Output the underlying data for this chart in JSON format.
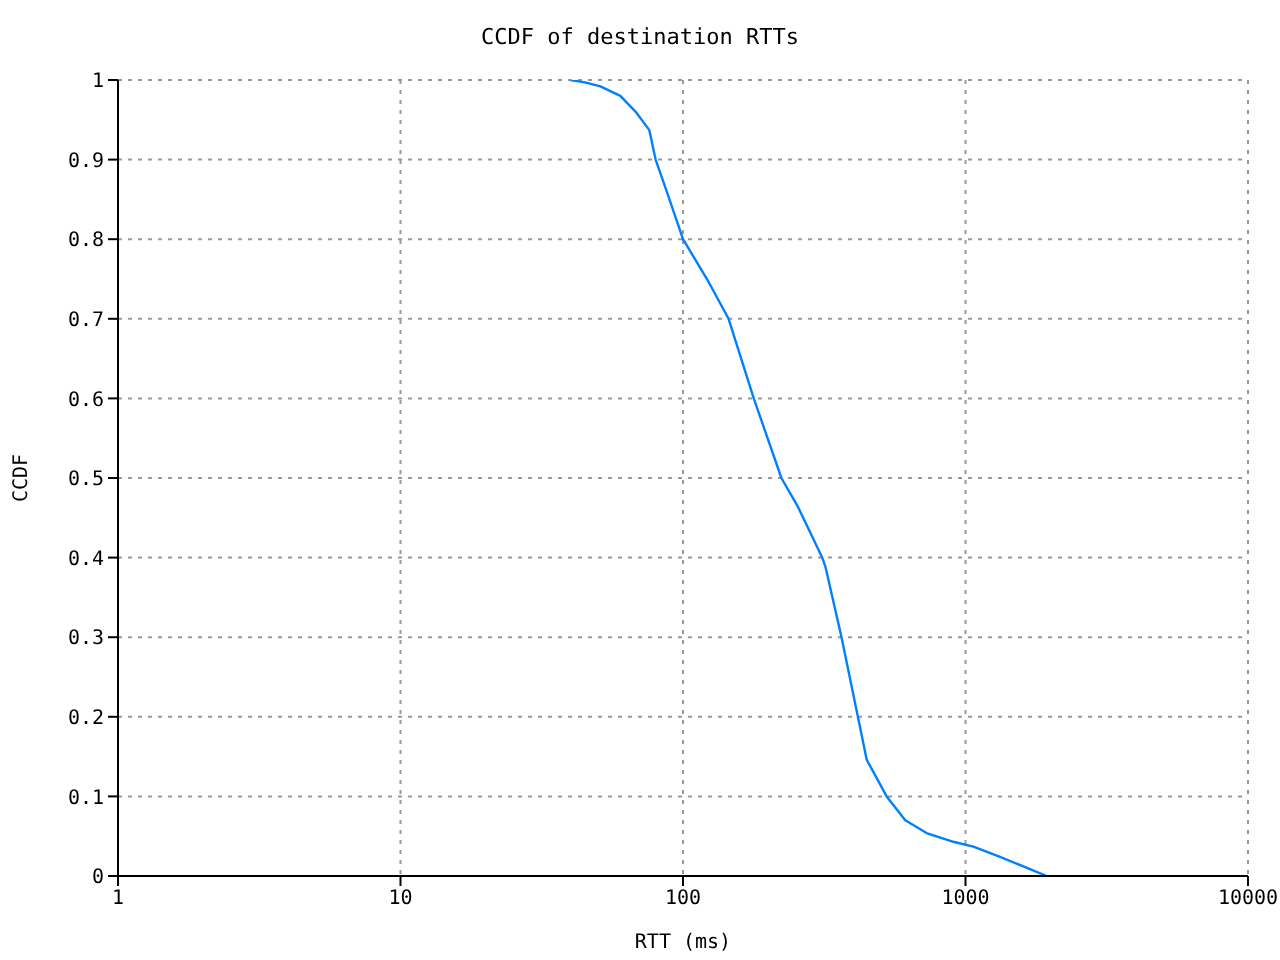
{
  "chart_data": {
    "type": "line",
    "title": "CCDF of destination RTTs",
    "xlabel": "RTT (ms)",
    "ylabel": "CCDF",
    "log": "x",
    "xlim": [
      1,
      10000
    ],
    "xticks": [
      1,
      10,
      100,
      1000,
      10000
    ],
    "ylim": [
      0,
      1
    ],
    "yticks": [
      0,
      0.1,
      0.2,
      0.3,
      0.4,
      0.5,
      0.6,
      0.7,
      0.8,
      0.9,
      1
    ],
    "grid": true,
    "marker": "none",
    "line_style": "solid",
    "x": [
      40,
      45,
      51,
      60,
      68,
      76,
      80,
      88,
      100,
      122,
      145,
      178,
      223,
      255,
      311,
      319,
      364,
      416,
      447,
      526,
      612,
      728,
      906,
      1066,
      1325,
      1940
    ],
    "series": [
      {
        "color": "#0080ff",
        "values": [
          1,
          0.997,
          0.992,
          0.98,
          0.96,
          0.937,
          0.9,
          0.858,
          0.8,
          0.749,
          0.7,
          0.6,
          0.5,
          0.464,
          0.4,
          0.389,
          0.3,
          0.2,
          0.146,
          0.1,
          0.07,
          0.054,
          0.043,
          0.037,
          0.024,
          0
        ]
      }
    ]
  }
}
